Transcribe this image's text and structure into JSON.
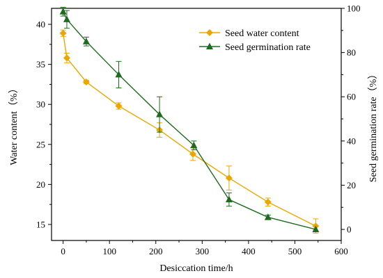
{
  "chart_data": {
    "type": "line",
    "xlabel": "Desiccation time/h",
    "ylabel_left": "Water content（%）",
    "ylabel_right": "Seed germination rate（%）",
    "xlim": [
      -25,
      600
    ],
    "ylim_left": [
      13,
      42
    ],
    "ylim_right": [
      -5,
      100
    ],
    "xticks": [
      0,
      100,
      200,
      300,
      400,
      500,
      600
    ],
    "yticks_left": [
      15,
      20,
      25,
      30,
      35,
      40
    ],
    "yticks_right": [
      0,
      20,
      40,
      60,
      80,
      100
    ],
    "legend_position": "top-right",
    "grid": false,
    "series": [
      {
        "name": "Seed water content",
        "axis": "left",
        "marker": "diamond",
        "color": "#E8A800",
        "x": [
          0,
          8,
          50,
          120,
          208,
          280,
          358,
          442,
          545
        ],
        "y": [
          38.9,
          35.8,
          32.8,
          29.8,
          26.8,
          23.8,
          20.8,
          17.8,
          14.8
        ],
        "err": [
          0.4,
          0.6,
          0.2,
          0.4,
          0.9,
          0.8,
          1.5,
          0.5,
          0.9
        ]
      },
      {
        "name": "Seed germination rate",
        "axis": "right",
        "marker": "triangle",
        "color": "#1E6B1E",
        "x": [
          0,
          8,
          50,
          120,
          208,
          282,
          358,
          442,
          545
        ],
        "y": [
          98.5,
          95,
          85,
          70,
          52,
          38,
          13.5,
          5.5,
          0
        ],
        "err": [
          2,
          4,
          2,
          6,
          8,
          2,
          3,
          1,
          0
        ]
      }
    ]
  }
}
